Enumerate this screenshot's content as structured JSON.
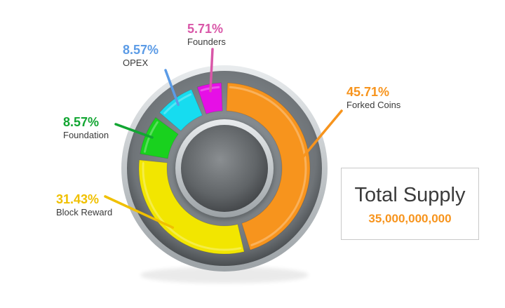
{
  "chart_data": {
    "type": "pie",
    "categories": [
      "Forked Coins",
      "Block Reward",
      "Foundation",
      "OPEX",
      "Founders"
    ],
    "values": [
      45.71,
      31.43,
      8.57,
      8.57,
      5.71
    ],
    "value_labels": [
      "45.71%",
      "31.43%",
      "8.57%",
      "8.57%",
      "5.71%"
    ],
    "colors": [
      "#f7941d",
      "#f2e600",
      "#19d11e",
      "#16dcf0",
      "#e60fe6"
    ],
    "label_colors": [
      "#f7941d",
      "#f0c000",
      "#12a632",
      "#5b9be6",
      "#d957a8"
    ],
    "title": "",
    "legend": "none"
  },
  "summary": {
    "label": "Total Supply",
    "value": "35,000,000,000"
  }
}
